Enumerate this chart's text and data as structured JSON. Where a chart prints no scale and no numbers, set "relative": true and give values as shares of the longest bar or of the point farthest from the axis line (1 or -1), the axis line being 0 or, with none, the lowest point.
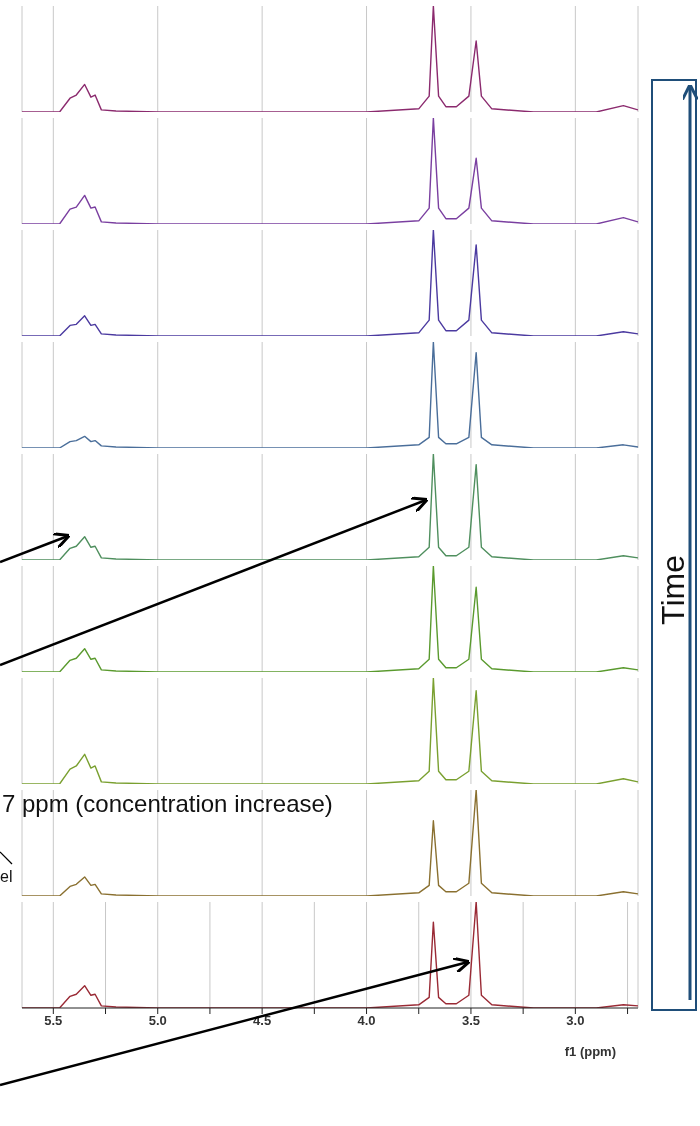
{
  "chart_data": [
    {
      "type": "line",
      "relative": true,
      "grid": "x",
      "tick_labels": false,
      "xlim": [
        5.65,
        2.7
      ],
      "xticks": [
        5.5,
        5,
        4.5,
        4,
        3.5,
        3
      ],
      "x": [
        5.65,
        5.47,
        5.42,
        5.39,
        5.35,
        5.32,
        5.3,
        5.27,
        5.2,
        5.0,
        4.5,
        4.0,
        3.75,
        3.7,
        3.68,
        3.655,
        3.62,
        3.57,
        3.51,
        3.475,
        3.45,
        3.4,
        3.2,
        2.9,
        2.77,
        2.7
      ],
      "series": [
        {
          "color": "#8b2a6e",
          "values": [
            0,
            0,
            0.13,
            0.16,
            0.26,
            0.14,
            0.16,
            0.02,
            0.01,
            0,
            0,
            0,
            0.03,
            0.15,
            1,
            0.15,
            0.05,
            0.05,
            0.15,
            0.67,
            0.15,
            0.03,
            0,
            0,
            0.06,
            0.02
          ]
        }
      ]
    },
    {
      "type": "line",
      "relative": true,
      "grid": "x",
      "tick_labels": false,
      "xlim": [
        5.65,
        2.7
      ],
      "xticks": [
        5.5,
        5,
        4.5,
        4,
        3.5,
        3
      ],
      "x": [
        5.65,
        5.47,
        5.42,
        5.39,
        5.35,
        5.32,
        5.3,
        5.27,
        5.2,
        5.0,
        4.5,
        4.0,
        3.75,
        3.7,
        3.68,
        3.655,
        3.62,
        3.57,
        3.51,
        3.475,
        3.45,
        3.4,
        3.2,
        2.9,
        2.77,
        2.7
      ],
      "series": [
        {
          "color": "#7a3fa0",
          "values": [
            0,
            0,
            0.14,
            0.16,
            0.27,
            0.15,
            0.16,
            0.02,
            0.01,
            0,
            0,
            0,
            0.03,
            0.15,
            1,
            0.15,
            0.05,
            0.05,
            0.15,
            0.62,
            0.15,
            0.03,
            0,
            0,
            0.06,
            0.02
          ]
        }
      ]
    },
    {
      "type": "line",
      "relative": true,
      "grid": "x",
      "tick_labels": false,
      "xlim": [
        5.65,
        2.7
      ],
      "xticks": [
        5.5,
        5,
        4.5,
        4,
        3.5,
        3
      ],
      "x": [
        5.65,
        5.47,
        5.42,
        5.39,
        5.35,
        5.32,
        5.3,
        5.27,
        5.2,
        5.0,
        4.5,
        4.0,
        3.75,
        3.7,
        3.68,
        3.655,
        3.62,
        3.57,
        3.51,
        3.475,
        3.45,
        3.4,
        3.2,
        2.9,
        2.77,
        2.7
      ],
      "series": [
        {
          "color": "#4b3aa0",
          "values": [
            0,
            0,
            0.1,
            0.11,
            0.19,
            0.1,
            0.11,
            0.02,
            0.01,
            0,
            0,
            0,
            0.03,
            0.15,
            1,
            0.15,
            0.05,
            0.05,
            0.15,
            0.86,
            0.15,
            0.03,
            0,
            0,
            0.04,
            0.02
          ]
        }
      ]
    },
    {
      "type": "line",
      "relative": true,
      "grid": "x",
      "tick_labels": false,
      "xlim": [
        5.65,
        2.7
      ],
      "xticks": [
        5.5,
        5,
        4.5,
        4,
        3.5,
        3
      ],
      "x": [
        5.65,
        5.47,
        5.42,
        5.39,
        5.35,
        5.32,
        5.3,
        5.27,
        5.2,
        5.0,
        4.5,
        4.0,
        3.75,
        3.7,
        3.68,
        3.655,
        3.62,
        3.57,
        3.51,
        3.475,
        3.45,
        3.4,
        3.2,
        2.9,
        2.77,
        2.7
      ],
      "series": [
        {
          "color": "#4a6e9a",
          "values": [
            0,
            0,
            0.06,
            0.07,
            0.11,
            0.06,
            0.07,
            0.02,
            0.01,
            0,
            0,
            0,
            0.03,
            0.1,
            1,
            0.1,
            0.04,
            0.04,
            0.1,
            0.9,
            0.1,
            0.03,
            0,
            0,
            0.03,
            0.01
          ]
        }
      ]
    },
    {
      "type": "line",
      "relative": true,
      "grid": "x",
      "tick_labels": false,
      "xlim": [
        5.65,
        2.7
      ],
      "xticks": [
        5.5,
        5,
        4.5,
        4,
        3.5,
        3
      ],
      "x": [
        5.65,
        5.47,
        5.42,
        5.39,
        5.35,
        5.32,
        5.3,
        5.27,
        5.2,
        5.0,
        4.5,
        4.0,
        3.75,
        3.7,
        3.68,
        3.655,
        3.62,
        3.57,
        3.51,
        3.475,
        3.45,
        3.4,
        3.2,
        2.9,
        2.77,
        2.7
      ],
      "series": [
        {
          "color": "#4f8f5e",
          "values": [
            0,
            0,
            0.11,
            0.13,
            0.22,
            0.12,
            0.13,
            0.02,
            0.01,
            0,
            0,
            0,
            0.03,
            0.12,
            1,
            0.12,
            0.04,
            0.04,
            0.12,
            0.9,
            0.12,
            0.03,
            0,
            0,
            0.04,
            0.02
          ]
        }
      ]
    },
    {
      "type": "line",
      "relative": true,
      "grid": "x",
      "tick_labels": false,
      "xlim": [
        5.65,
        2.7
      ],
      "xticks": [
        5.5,
        5,
        4.5,
        4,
        3.5,
        3
      ],
      "x": [
        5.65,
        5.47,
        5.42,
        5.39,
        5.35,
        5.32,
        5.3,
        5.27,
        5.2,
        5.0,
        4.5,
        4.0,
        3.75,
        3.7,
        3.68,
        3.655,
        3.62,
        3.57,
        3.51,
        3.475,
        3.45,
        3.4,
        3.2,
        2.9,
        2.77,
        2.7
      ],
      "series": [
        {
          "color": "#5a9a2e",
          "values": [
            0,
            0,
            0.11,
            0.13,
            0.22,
            0.12,
            0.13,
            0.02,
            0.01,
            0,
            0,
            0,
            0.03,
            0.12,
            1,
            0.12,
            0.04,
            0.04,
            0.12,
            0.8,
            0.12,
            0.03,
            0,
            0,
            0.04,
            0.02
          ]
        }
      ]
    },
    {
      "type": "line",
      "relative": true,
      "grid": "x",
      "tick_labels": false,
      "xlim": [
        5.65,
        2.7
      ],
      "xticks": [
        5.5,
        5,
        4.5,
        4,
        3.5,
        3
      ],
      "x": [
        5.65,
        5.47,
        5.42,
        5.39,
        5.35,
        5.32,
        5.3,
        5.27,
        5.2,
        5.0,
        4.5,
        4.0,
        3.75,
        3.7,
        3.68,
        3.655,
        3.62,
        3.57,
        3.51,
        3.475,
        3.45,
        3.4,
        3.2,
        2.9,
        2.77,
        2.7
      ],
      "series": [
        {
          "color": "#7aa030",
          "values": [
            0,
            0,
            0.14,
            0.17,
            0.28,
            0.15,
            0.17,
            0.02,
            0.01,
            0,
            0,
            0,
            0.03,
            0.12,
            1,
            0.12,
            0.04,
            0.04,
            0.12,
            0.88,
            0.12,
            0.03,
            0,
            0,
            0.05,
            0.02
          ]
        }
      ]
    },
    {
      "type": "line",
      "relative": true,
      "grid": "x",
      "tick_labels": false,
      "xlim": [
        5.65,
        2.7
      ],
      "xticks": [
        5.5,
        5,
        4.5,
        4,
        3.5,
        3
      ],
      "x": [
        5.65,
        5.47,
        5.42,
        5.39,
        5.35,
        5.32,
        5.3,
        5.27,
        5.2,
        5.0,
        4.5,
        4.0,
        3.75,
        3.7,
        3.68,
        3.655,
        3.62,
        3.57,
        3.51,
        3.475,
        3.45,
        3.4,
        3.2,
        2.9,
        2.77,
        2.7
      ],
      "series": [
        {
          "color": "#8a7030",
          "values": [
            0,
            0,
            0.09,
            0.11,
            0.18,
            0.1,
            0.11,
            0.02,
            0.01,
            0,
            0,
            0,
            0.03,
            0.1,
            0.71,
            0.1,
            0.04,
            0.04,
            0.12,
            1,
            0.12,
            0.03,
            0,
            0,
            0.04,
            0.02
          ]
        }
      ]
    },
    {
      "type": "line",
      "relative": true,
      "grid": "x",
      "tick_labels": "x",
      "xlim": [
        5.65,
        2.7
      ],
      "xticks": [
        {
          "value": 5.5,
          "label": "5.5"
        },
        {
          "value": 5.25,
          "label": null
        },
        {
          "value": 5.0,
          "label": "5.0"
        },
        {
          "value": 4.75,
          "label": null
        },
        {
          "value": 4.5,
          "label": "4.5"
        },
        {
          "value": 4.25,
          "label": null
        },
        {
          "value": 4.0,
          "label": "4.0"
        },
        {
          "value": 3.75,
          "label": null
        },
        {
          "value": 3.5,
          "label": "3.5"
        },
        {
          "value": 3.25,
          "label": null
        },
        {
          "value": 3.0,
          "label": "3.0"
        },
        {
          "value": 2.75,
          "label": null
        }
      ],
      "xlabel": "f1 (ppm)",
      "x": [
        5.65,
        5.47,
        5.42,
        5.39,
        5.35,
        5.32,
        5.3,
        5.27,
        5.2,
        5.0,
        4.5,
        4.0,
        3.75,
        3.7,
        3.68,
        3.655,
        3.62,
        3.57,
        3.51,
        3.475,
        3.45,
        3.4,
        3.2,
        2.9,
        2.77,
        2.7
      ],
      "series": [
        {
          "color": "#9a2a35",
          "values": [
            0,
            0,
            0.11,
            0.13,
            0.21,
            0.12,
            0.13,
            0.02,
            0.01,
            0,
            0,
            0,
            0.03,
            0.1,
            0.81,
            0.1,
            0.04,
            0.04,
            0.12,
            1,
            0.12,
            0.03,
            0,
            0,
            0.03,
            0.02
          ]
        }
      ],
      "annotations": [
        "7 ppm (concentration increase)",
        "el",
        "Time"
      ]
    }
  ]
}
